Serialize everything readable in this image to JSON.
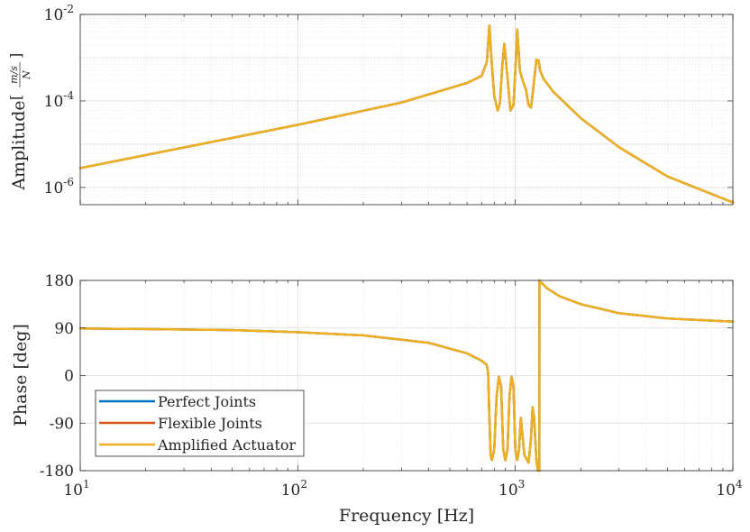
{
  "chart_data": [
    {
      "type": "line",
      "panel": "magnitude",
      "ylabel_text": "Amplitude",
      "ylabel_unit_num": "m/s",
      "ylabel_unit_den": "N",
      "xscale": "log",
      "yscale": "log",
      "xlim": [
        10,
        10000
      ],
      "ylim": [
        4e-07,
        0.01
      ],
      "grid": true,
      "yticks": [
        {
          "value": 1e-06,
          "base": "10",
          "exp": "-6"
        },
        {
          "value": 0.0001,
          "base": "10",
          "exp": "-4"
        },
        {
          "value": 0.01,
          "base": "10",
          "exp": "-2"
        }
      ],
      "series": [
        {
          "name": "Perfect Joints",
          "color": "#0072BD",
          "x": [
            10,
            50,
            100,
            300,
            600,
            700,
            740,
            760,
            780,
            800,
            830,
            850,
            870,
            890,
            920,
            950,
            980,
            1000,
            1020,
            1050,
            1080,
            1120,
            1150,
            1180,
            1200,
            1250,
            1280,
            1300,
            1350,
            1500,
            2000,
            3000,
            5000,
            10000
          ],
          "y": [
            2.8e-06,
            1.4e-05,
            2.8e-05,
            9.2e-05,
            0.00026,
            0.00038,
            0.0008,
            0.0055,
            0.0007,
            0.00013,
            6e-05,
            9e-05,
            0.0006,
            0.0021,
            0.00035,
            6e-05,
            8e-05,
            0.0005,
            0.0045,
            0.0005,
            0.0003,
            0.00018,
            8e-05,
            7e-05,
            0.00014,
            0.0009,
            0.00085,
            0.0005,
            0.00032,
            0.00016,
            4e-05,
            8.5e-06,
            1.8e-06,
            4.5e-07
          ]
        },
        {
          "name": "Flexible Joints",
          "color": "#D95319",
          "x": [
            10,
            50,
            100,
            300,
            600,
            700,
            740,
            760,
            780,
            800,
            830,
            850,
            870,
            890,
            920,
            950,
            980,
            1000,
            1020,
            1050,
            1080,
            1120,
            1150,
            1180,
            1200,
            1250,
            1280,
            1300,
            1350,
            1500,
            2000,
            3000,
            5000,
            10000
          ],
          "y": [
            2.8e-06,
            1.4e-05,
            2.8e-05,
            9.2e-05,
            0.00026,
            0.00038,
            0.0008,
            0.0055,
            0.0007,
            0.00013,
            6e-05,
            9e-05,
            0.0006,
            0.0021,
            0.00035,
            6e-05,
            8e-05,
            0.0005,
            0.0045,
            0.0005,
            0.0003,
            0.00018,
            8e-05,
            7e-05,
            0.00014,
            0.0009,
            0.00085,
            0.0005,
            0.00032,
            0.00016,
            4e-05,
            8.5e-06,
            1.8e-06,
            4.5e-07
          ]
        },
        {
          "name": "Amplified Actuator",
          "color": "#EDB120",
          "x": [
            10,
            50,
            100,
            300,
            600,
            700,
            740,
            760,
            780,
            800,
            830,
            850,
            870,
            890,
            920,
            950,
            980,
            1000,
            1020,
            1050,
            1080,
            1120,
            1150,
            1180,
            1200,
            1250,
            1280,
            1300,
            1350,
            1500,
            2000,
            3000,
            5000,
            10000
          ],
          "y": [
            2.8e-06,
            1.4e-05,
            2.8e-05,
            9.2e-05,
            0.00026,
            0.00038,
            0.0008,
            0.0055,
            0.0007,
            0.00013,
            6e-05,
            9e-05,
            0.0006,
            0.0021,
            0.00035,
            6e-05,
            8e-05,
            0.0005,
            0.0045,
            0.0005,
            0.0003,
            0.00018,
            8e-05,
            7e-05,
            0.00014,
            0.0009,
            0.00085,
            0.0005,
            0.00032,
            0.00016,
            4e-05,
            8.5e-06,
            1.8e-06,
            4.5e-07
          ]
        }
      ]
    },
    {
      "type": "line",
      "panel": "phase",
      "ylabel": "Phase [deg]",
      "xlabel": "Frequency [Hz]",
      "xscale": "log",
      "xlim": [
        10,
        10000
      ],
      "ylim": [
        -180,
        180
      ],
      "grid": true,
      "yticks": [
        "180",
        "90",
        "0",
        "-90",
        "-180"
      ],
      "ytick_values": [
        180,
        90,
        0,
        -90,
        -180
      ],
      "xticks": [
        {
          "value": 10,
          "base": "10",
          "exp": "1"
        },
        {
          "value": 100,
          "base": "10",
          "exp": "2"
        },
        {
          "value": 1000,
          "base": "10",
          "exp": "3"
        },
        {
          "value": 10000,
          "base": "10",
          "exp": "4"
        }
      ],
      "legend_position": "bottom-left",
      "series": [
        {
          "name": "Perfect Joints",
          "color": "#0072BD",
          "x": [
            10,
            20,
            50,
            100,
            200,
            400,
            600,
            700,
            740,
            750,
            760,
            770,
            780,
            800,
            820,
            840,
            860,
            880,
            900,
            920,
            940,
            960,
            980,
            1000,
            1020,
            1040,
            1060,
            1100,
            1150,
            1180,
            1200,
            1220,
            1250,
            1270,
            1280,
            1290,
            1290.5,
            1300,
            1400,
            1600,
            2000,
            3000,
            5000,
            10000
          ],
          "y": [
            89,
            88,
            86,
            82,
            76,
            62,
            42,
            28,
            20,
            5,
            -80,
            -150,
            -160,
            -140,
            -40,
            -2,
            -20,
            -140,
            -160,
            -140,
            -40,
            -2,
            -20,
            -140,
            -160,
            -140,
            -80,
            -150,
            -165,
            -120,
            -60,
            -80,
            -160,
            -180,
            -180,
            -180,
            180,
            178,
            165,
            150,
            135,
            118,
            108,
            102
          ]
        },
        {
          "name": "Flexible Joints",
          "color": "#D95319",
          "x": [
            10,
            20,
            50,
            100,
            200,
            400,
            600,
            700,
            740,
            750,
            760,
            770,
            780,
            800,
            820,
            840,
            860,
            880,
            900,
            920,
            940,
            960,
            980,
            1000,
            1020,
            1040,
            1060,
            1100,
            1150,
            1180,
            1200,
            1220,
            1250,
            1270,
            1280,
            1290,
            1290.5,
            1300,
            1400,
            1600,
            2000,
            3000,
            5000,
            10000
          ],
          "y": [
            89,
            88,
            86,
            82,
            76,
            62,
            42,
            28,
            20,
            5,
            -80,
            -150,
            -160,
            -140,
            -40,
            -2,
            -20,
            -140,
            -160,
            -140,
            -40,
            -2,
            -20,
            -140,
            -160,
            -140,
            -80,
            -150,
            -165,
            -120,
            -60,
            -80,
            -160,
            -180,
            -180,
            -180,
            180,
            178,
            165,
            150,
            135,
            118,
            108,
            102
          ]
        },
        {
          "name": "Amplified Actuator",
          "color": "#EDB120",
          "x": [
            10,
            20,
            50,
            100,
            200,
            400,
            600,
            700,
            740,
            750,
            760,
            770,
            780,
            800,
            820,
            840,
            860,
            880,
            900,
            920,
            940,
            960,
            980,
            1000,
            1020,
            1040,
            1060,
            1100,
            1150,
            1180,
            1200,
            1220,
            1250,
            1270,
            1280,
            1290,
            1290.5,
            1300,
            1400,
            1600,
            2000,
            3000,
            5000,
            10000
          ],
          "y": [
            89,
            88,
            86,
            82,
            76,
            62,
            42,
            28,
            20,
            5,
            -80,
            -150,
            -160,
            -140,
            -40,
            -2,
            -20,
            -140,
            -160,
            -140,
            -40,
            -2,
            -20,
            -140,
            -160,
            -140,
            -80,
            -150,
            -165,
            -120,
            -60,
            -80,
            -160,
            -180,
            -180,
            -180,
            180,
            178,
            165,
            150,
            135,
            118,
            108,
            102
          ]
        }
      ]
    }
  ]
}
